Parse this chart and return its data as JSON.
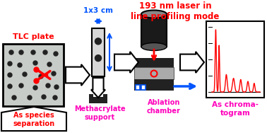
{
  "bg_color": "#ffffff",
  "title_laser": "193 nm laser in\nline profiling mode",
  "label_tlc": "TLC plate",
  "label_species": "As species\nseparation",
  "label_methacrylate": "Methacrylate\nsupport",
  "label_ablation": "Ablation\nchamber",
  "label_chromatogram": "As chroma-\ntogram",
  "label_size": "1x3 cm",
  "red": "#ff0000",
  "magenta": "#ff00bb",
  "blue": "#0055ff",
  "black": "#000000",
  "white": "#ffffff",
  "light_gray": "#c8ccc8",
  "strip_gray": "#d8d8d8",
  "dark_gray": "#222222",
  "cyl_dark": "#1a1a1a",
  "cyl_top": "#888888",
  "mid_gray": "#aaaaaa"
}
